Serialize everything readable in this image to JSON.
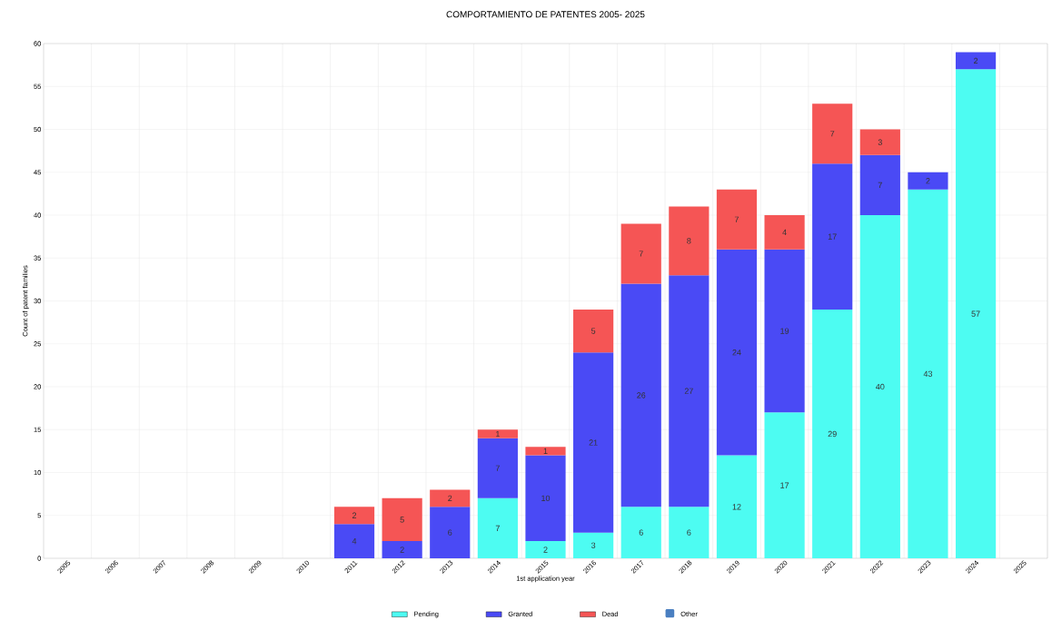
{
  "chart_data": {
    "type": "bar",
    "stacked": true,
    "title": "COMPORTAMIENTO DE PATENTES 2005- 2025",
    "xlabel": "1st application year",
    "ylabel": "Count of patent families",
    "categories": [
      "2005",
      "2006",
      "2007",
      "2008",
      "2009",
      "2010",
      "2011",
      "2012",
      "2013",
      "2014",
      "2015",
      "2016",
      "2017",
      "2018",
      "2019",
      "2020",
      "2021",
      "2022",
      "2023",
      "2024",
      "2025"
    ],
    "series": [
      {
        "name": "Pending",
        "color": "#4dfcf2",
        "values": [
          null,
          null,
          null,
          null,
          null,
          null,
          null,
          null,
          null,
          7,
          2,
          3,
          6,
          6,
          12,
          17,
          29,
          40,
          43,
          57,
          null
        ]
      },
      {
        "name": "Granted",
        "color": "#4a4af5",
        "values": [
          null,
          null,
          null,
          null,
          null,
          null,
          4,
          2,
          6,
          7,
          10,
          21,
          26,
          27,
          24,
          19,
          17,
          7,
          2,
          2,
          null
        ]
      },
      {
        "name": "Dead",
        "color": "#f55555",
        "values": [
          null,
          null,
          null,
          null,
          null,
          null,
          2,
          5,
          2,
          1,
          1,
          5,
          7,
          8,
          7,
          4,
          7,
          3,
          null,
          null,
          null
        ]
      },
      {
        "name": "Other",
        "color": "#4a7fc1",
        "values": [
          null,
          null,
          null,
          null,
          null,
          null,
          null,
          null,
          null,
          null,
          null,
          null,
          null,
          null,
          null,
          null,
          null,
          null,
          null,
          null,
          null
        ]
      }
    ],
    "ylim": [
      0,
      60
    ],
    "yticks": [
      0,
      5,
      10,
      15,
      20,
      25,
      30,
      35,
      40,
      45,
      50,
      55,
      60
    ],
    "grid": true,
    "legend": "bottom",
    "data_labels": true
  }
}
